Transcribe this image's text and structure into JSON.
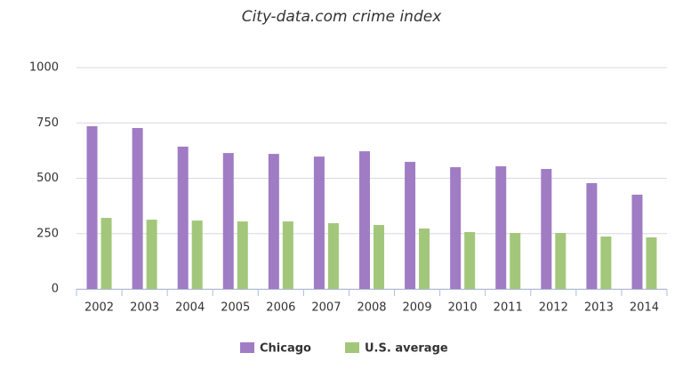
{
  "chart_data": {
    "type": "bar",
    "title": "City-data.com crime index",
    "categories": [
      "2002",
      "2003",
      "2004",
      "2005",
      "2006",
      "2007",
      "2008",
      "2009",
      "2010",
      "2011",
      "2012",
      "2013",
      "2014"
    ],
    "series": [
      {
        "name": "Chicago",
        "color": "#a07cc5",
        "values": [
          735,
          727,
          643,
          614,
          610,
          598,
          622,
          574,
          550,
          554,
          542,
          478,
          426
        ]
      },
      {
        "name": "U.S. average",
        "color": "#a3c77a",
        "values": [
          321,
          313,
          309,
          305,
          305,
          297,
          289,
          273,
          257,
          253,
          253,
          237,
          233
        ]
      }
    ],
    "ylim": [
      0,
      1000
    ],
    "yticks": [
      0,
      250,
      500,
      750,
      1000
    ],
    "grid": true,
    "legend": "bottom"
  }
}
